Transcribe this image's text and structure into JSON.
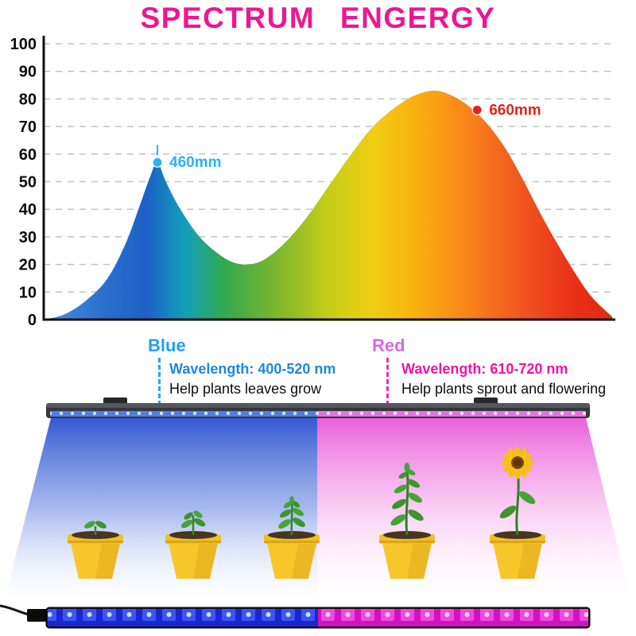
{
  "title": {
    "text": "SPECTRUM ENGERGY",
    "color": "#ee1690"
  },
  "chart_data": {
    "type": "area",
    "title": "SPECTRUM ENGERGY",
    "xlabel": "",
    "ylabel": "",
    "x_range": [
      380,
      780
    ],
    "ylim": [
      0,
      100
    ],
    "yticks": [
      0,
      10,
      20,
      30,
      40,
      50,
      60,
      70,
      80,
      90,
      100
    ],
    "grid": "dashed-horizontal",
    "series": [
      {
        "name": "spectrum-energy",
        "points": [
          [
            380,
            0
          ],
          [
            395,
            2
          ],
          [
            410,
            7
          ],
          [
            425,
            15
          ],
          [
            438,
            28
          ],
          [
            448,
            42
          ],
          [
            455,
            52
          ],
          [
            460,
            57
          ],
          [
            466,
            50
          ],
          [
            475,
            41
          ],
          [
            488,
            31
          ],
          [
            500,
            25
          ],
          [
            512,
            21
          ],
          [
            524,
            20
          ],
          [
            536,
            22
          ],
          [
            550,
            28
          ],
          [
            565,
            37
          ],
          [
            580,
            48
          ],
          [
            595,
            59
          ],
          [
            610,
            69
          ],
          [
            625,
            76
          ],
          [
            640,
            81
          ],
          [
            655,
            83
          ],
          [
            668,
            81
          ],
          [
            680,
            77
          ],
          [
            692,
            71
          ],
          [
            705,
            62
          ],
          [
            718,
            50
          ],
          [
            730,
            38
          ],
          [
            742,
            27
          ],
          [
            755,
            16
          ],
          [
            766,
            8
          ],
          [
            780,
            1
          ]
        ]
      }
    ],
    "annotations": [
      {
        "label": "460mm",
        "x": 460,
        "y": 57,
        "color": "#2bb2f2",
        "pointer": true
      },
      {
        "label": "660mm",
        "x": 685,
        "y": 76,
        "color": "#e1251a",
        "pointer": false
      }
    ],
    "gradient_stops": [
      [
        "0%",
        "#4a8ed8"
      ],
      [
        "9%",
        "#2f74d0"
      ],
      [
        "18%",
        "#1c60c6"
      ],
      [
        "25%",
        "#12a0b8"
      ],
      [
        "32%",
        "#34a94c"
      ],
      [
        "42%",
        "#84b82a"
      ],
      [
        "50%",
        "#c6cd19"
      ],
      [
        "58%",
        "#f0ce12"
      ],
      [
        "66%",
        "#f9ae10"
      ],
      [
        "75%",
        "#f8821a"
      ],
      [
        "84%",
        "#f25520"
      ],
      [
        "93%",
        "#e93118"
      ],
      [
        "100%",
        "#e02a12"
      ]
    ]
  },
  "legend": {
    "blue": {
      "name": "Blue",
      "color": "#1f9ff0",
      "wavelength": "Wavelength: 400-520 nm",
      "description": "Help plants leaves grow"
    },
    "red": {
      "name": "Red",
      "color": "#ef13a4",
      "wavelength": "Wavelength: 610-720 nm",
      "description": "Help plants sprout and flowering"
    }
  }
}
